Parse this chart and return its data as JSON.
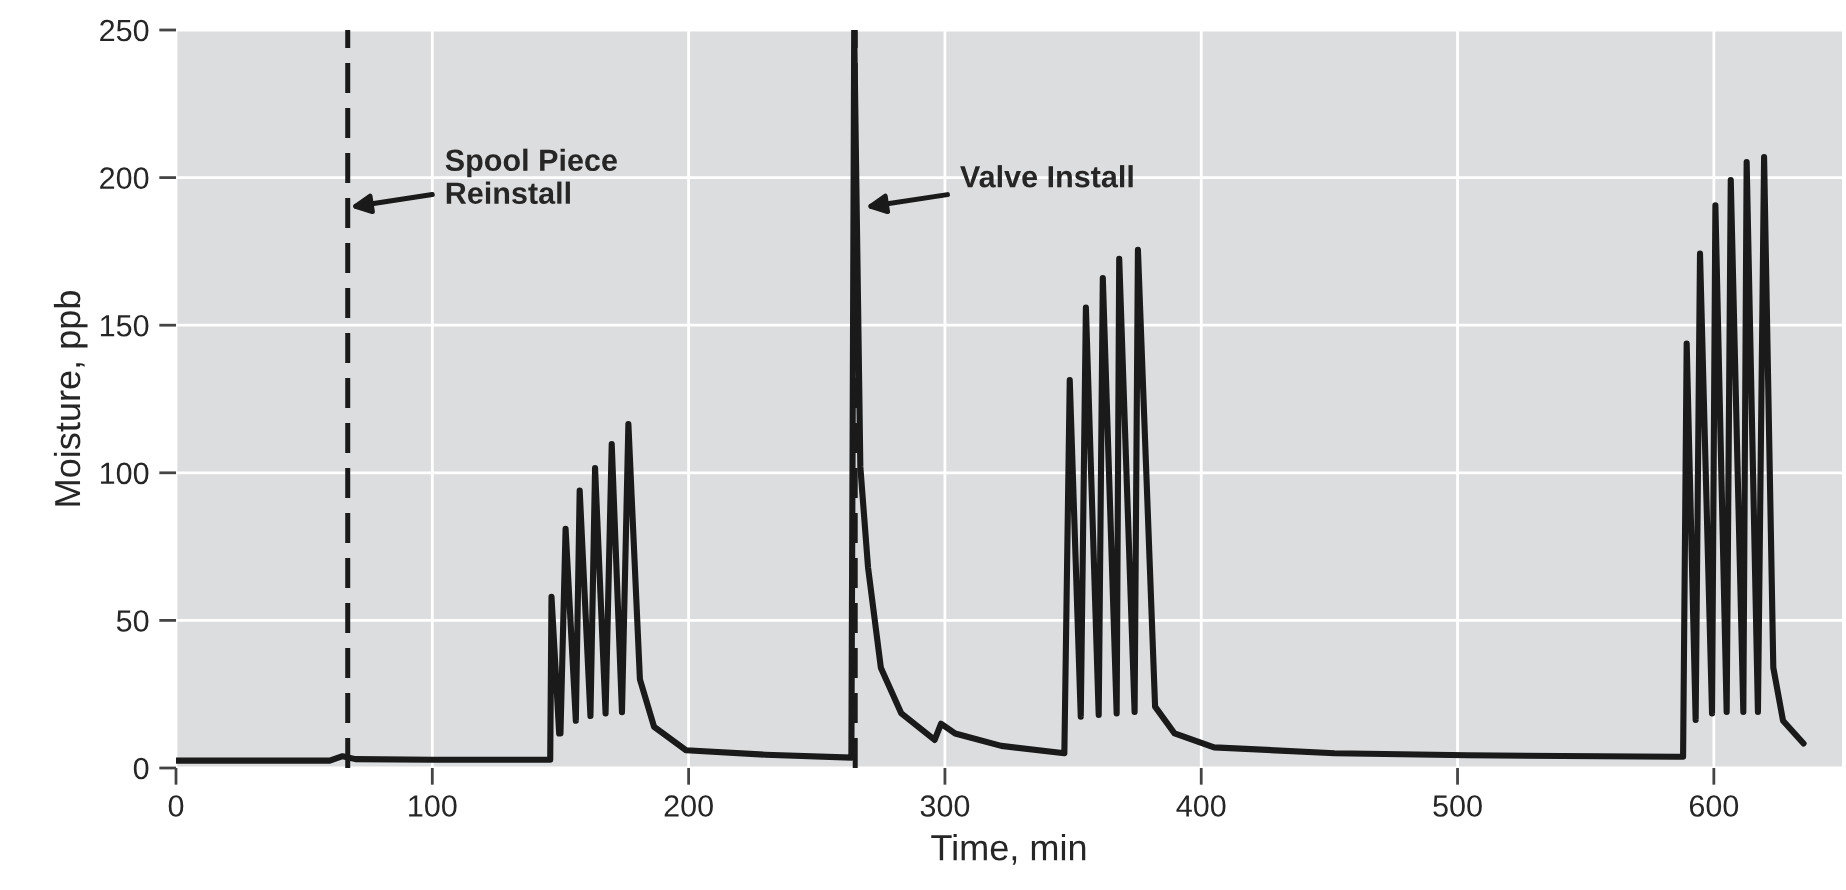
{
  "chart_data": {
    "type": "line",
    "xlabel": "Time, min",
    "ylabel": "Moisture, ppb",
    "xlim": [
      0,
      650
    ],
    "ylim": [
      0,
      250
    ],
    "xticks": [
      0,
      100,
      200,
      300,
      400,
      500,
      600
    ],
    "yticks": [
      0,
      50,
      100,
      150,
      200,
      250
    ],
    "grid": true,
    "legend": false,
    "marker": "none",
    "line_style": "solid",
    "series": [
      {
        "color": "#1a1a1a",
        "x": [
          0,
          60,
          65,
          70,
          100,
          146,
          146.5,
          149.5,
          150,
          152,
          156,
          157.5,
          161.7,
          163.5,
          167.6,
          170,
          174,
          176.5,
          181,
          186.5,
          199,
          230,
          263.5,
          264.6,
          267,
          270,
          275,
          283,
          296,
          298.5,
          304,
          322,
          346.6,
          348.7,
          353,
          355,
          360,
          361.6,
          367,
          368,
          374,
          375.3,
          382,
          389.6,
          405,
          452,
          504,
          585,
          588,
          589.4,
          592.9,
          594.6,
          599.3,
          600.6,
          605,
          606.6,
          611.5,
          612.8,
          617.2,
          619.6,
          623.2,
          627,
          635
        ],
        "values": [
          2.5,
          2.5,
          4,
          3,
          2.8,
          2.8,
          58,
          11.7,
          11.7,
          81,
          16,
          94,
          17.6,
          101.6,
          18.5,
          109.7,
          18.9,
          116.5,
          30,
          14,
          6,
          4.5,
          3.5,
          250,
          102,
          68,
          34,
          18.5,
          9.5,
          15,
          11.7,
          7.5,
          5,
          131.4,
          17.4,
          156,
          18,
          166,
          18.5,
          172.5,
          19,
          175.5,
          20.8,
          11.7,
          7,
          5,
          4.3,
          3.8,
          3.8,
          143.8,
          16.3,
          174.3,
          18.5,
          190.6,
          19,
          199.2,
          19,
          205.3,
          19,
          207,
          34,
          16,
          8.3
        ]
      }
    ],
    "ref_lines": [
      {
        "axis": "x",
        "value": 67,
        "color": "#1a1a1a",
        "line_style": "dashed"
      },
      {
        "axis": "x",
        "value": 265,
        "color": "#1a1a1a",
        "line_style": "dashed"
      }
    ],
    "annotations": [
      {
        "text": "Spool Piece\nReinstall",
        "x": 68,
        "y": 190
      },
      {
        "text": "Valve Install",
        "x": 269,
        "y": 190
      }
    ]
  }
}
